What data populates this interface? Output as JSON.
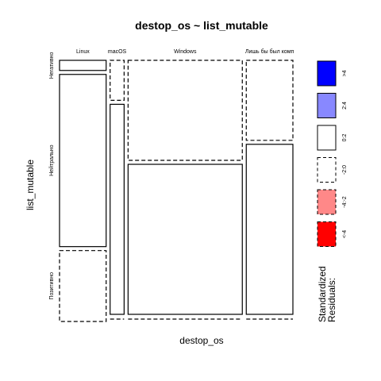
{
  "chart_data": {
    "type": "mosaic",
    "title": "destop_os ~ list_mutable",
    "xlabel": "destop_os",
    "ylabel": "list_mutable",
    "x_categories": [
      "Linux",
      "macOS",
      "Windows",
      "Лишь бы был комп"
    ],
    "y_categories": [
      "Негативно",
      "Нейтрально",
      "Позитивно"
    ],
    "column_proportions": [
      0.2,
      0.06,
      0.49,
      0.2
    ],
    "cell_proportions": [
      [
        0.04,
        0.68,
        0.28
      ],
      [
        0.16,
        0.84,
        0.0
      ],
      [
        0.4,
        0.6,
        0.0
      ],
      [
        0.32,
        0.68,
        0.0
      ]
    ],
    "residual_class": [
      [
        "0:2",
        "0:2",
        "-2:0"
      ],
      [
        "-2:0",
        "0:2",
        "-2:0"
      ],
      [
        "-2:0",
        "0:2",
        "-2:0"
      ],
      [
        "-2:0",
        "0:2",
        "-2:0"
      ]
    ],
    "legend": {
      "title": "Standardized Residuals:",
      "items": [
        {
          "label": ">4",
          "fill": "#0000FF",
          "dashed": false
        },
        {
          "label": "2:4",
          "fill": "#8888FF",
          "dashed": false
        },
        {
          "label": "0:2",
          "fill": "#FFFFFF",
          "dashed": false
        },
        {
          "label": "-2:0",
          "fill": "#FFFFFF",
          "dashed": true
        },
        {
          "label": "-4:-2",
          "fill": "#FF8888",
          "dashed": true
        },
        {
          "label": "<-4",
          "fill": "#FF0000",
          "dashed": true
        }
      ]
    }
  }
}
